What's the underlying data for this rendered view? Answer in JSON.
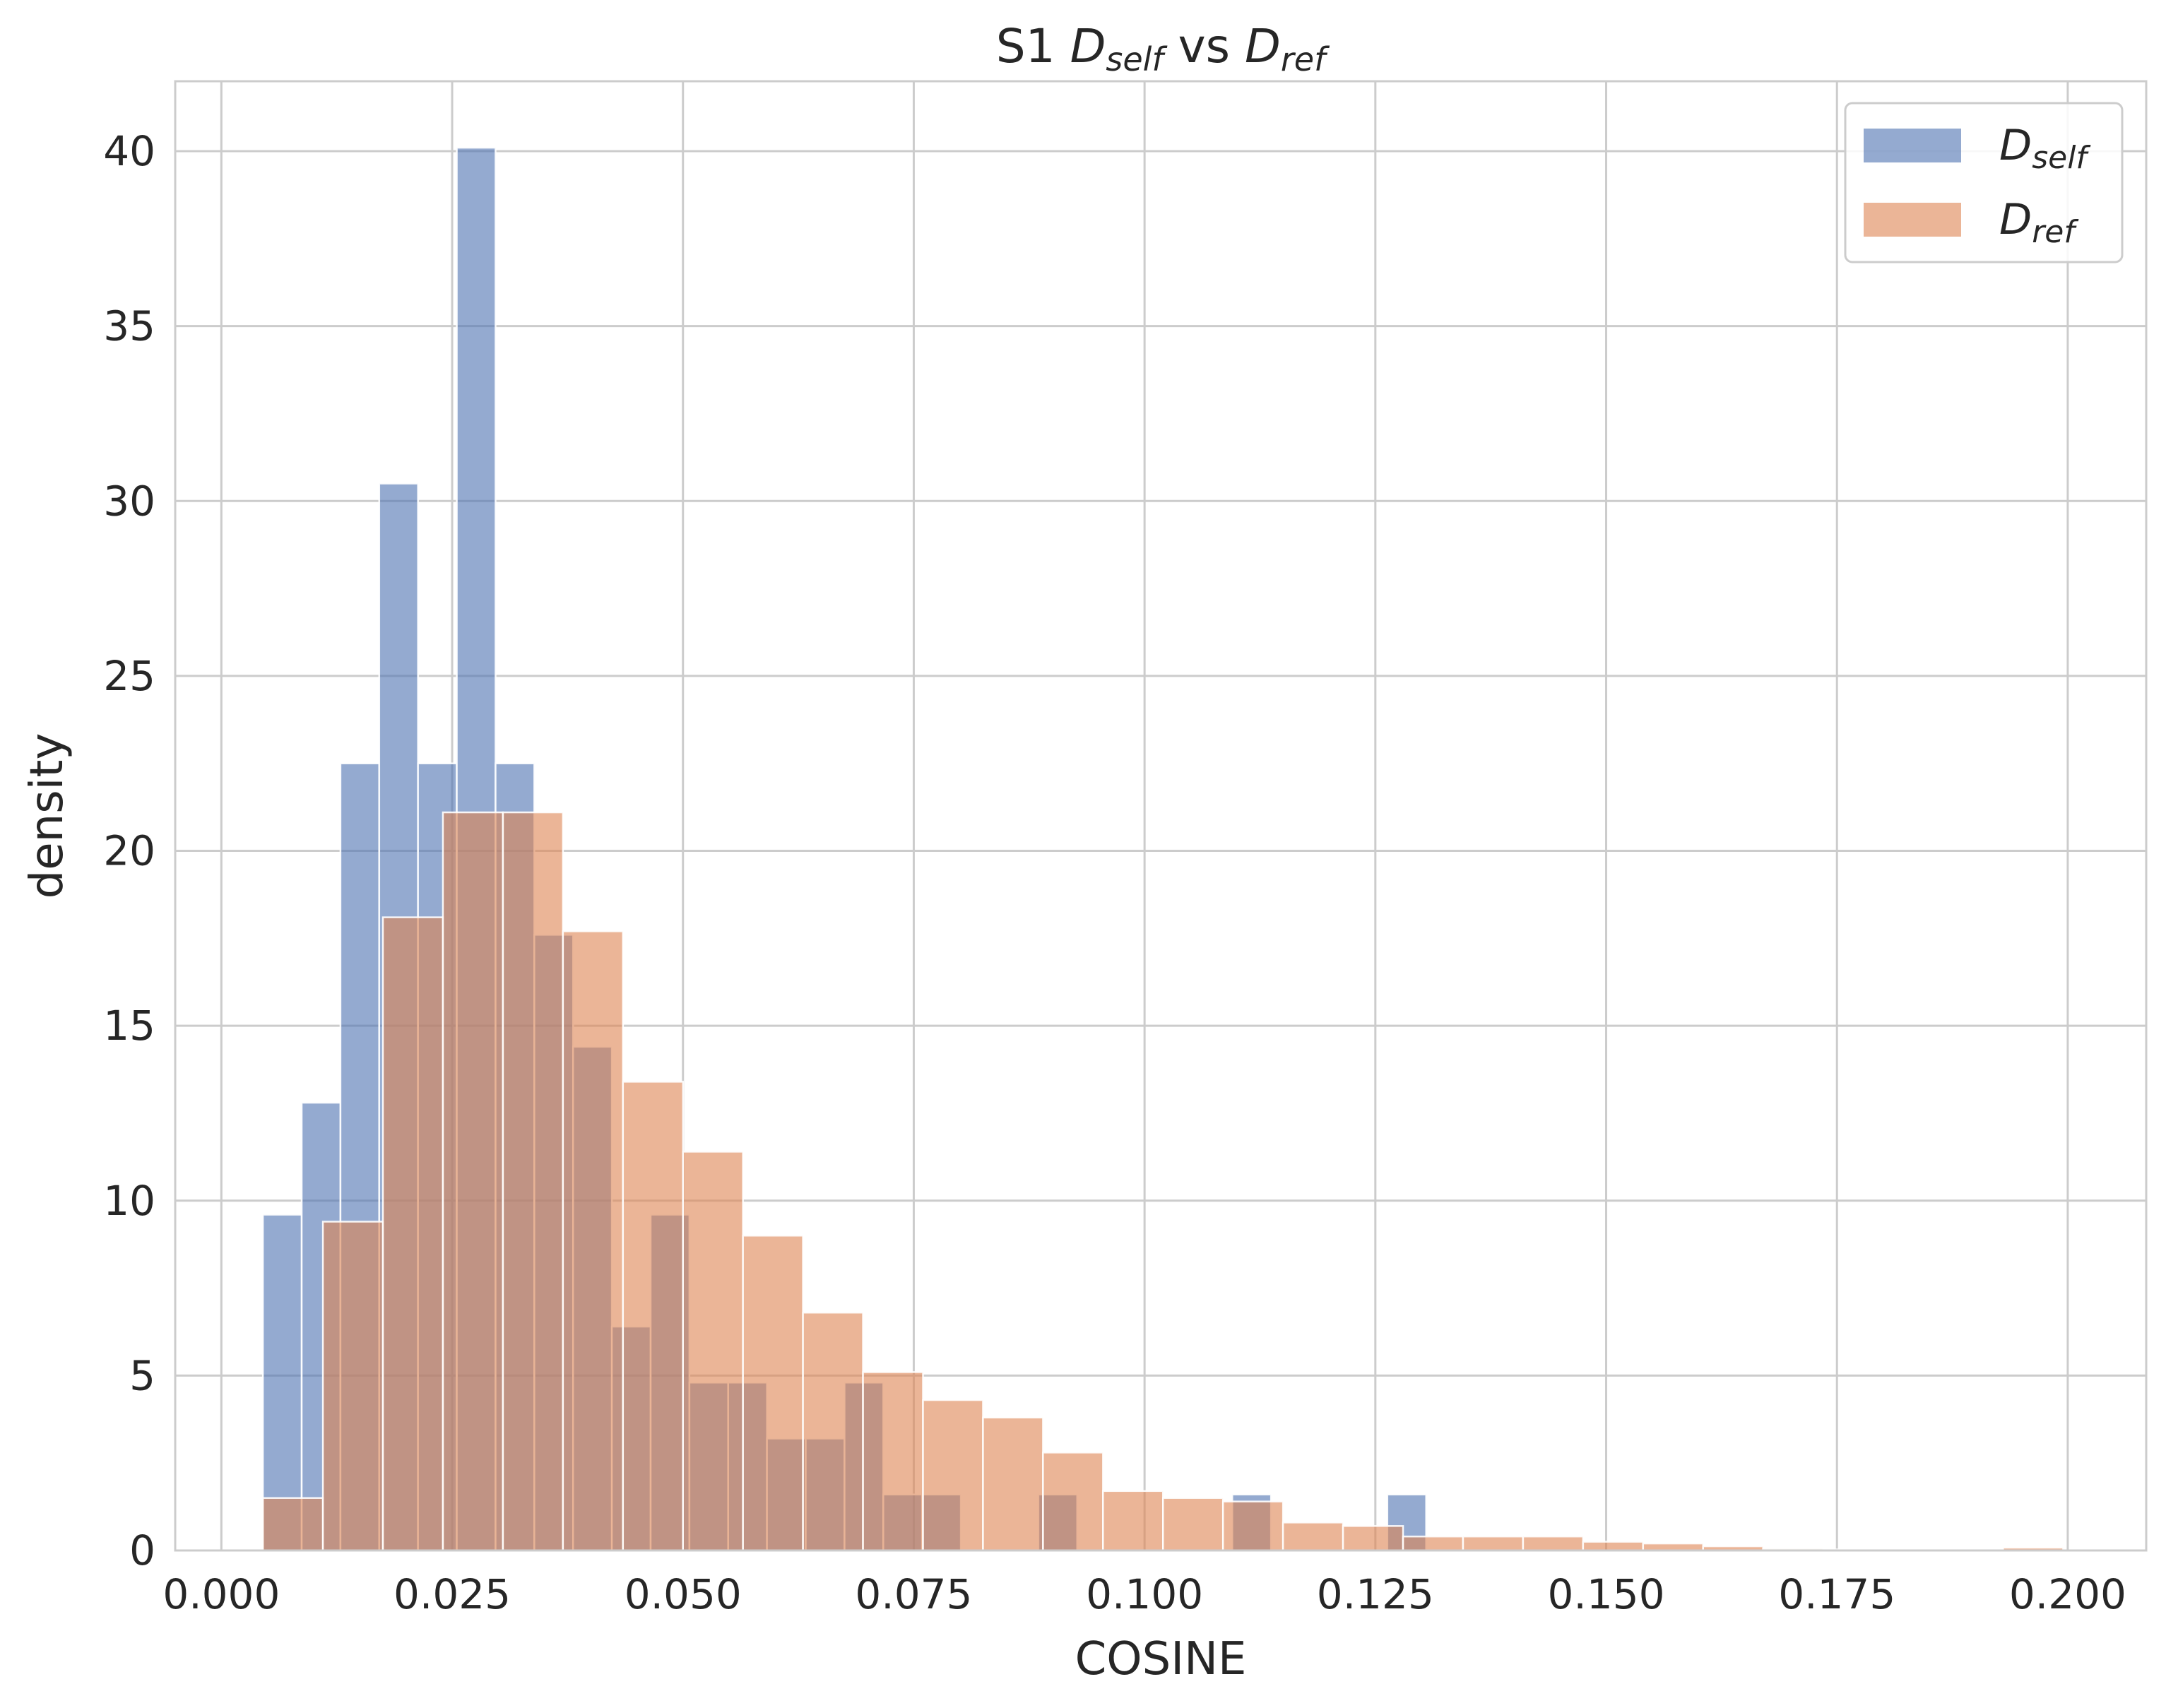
{
  "chart_data": {
    "type": "bar",
    "subtype": "histogram",
    "title": {
      "prefix": "S1 ",
      "series1": "D",
      "series1_sub": "self",
      "middle": " vs ",
      "series2": "D",
      "series2_sub": "ref"
    },
    "xlabel": "COSINE",
    "ylabel": "density",
    "xlim": [
      -0.005,
      0.2085
    ],
    "ylim": [
      0,
      42
    ],
    "xticks": [
      0.0,
      0.025,
      0.05,
      0.075,
      0.1,
      0.125,
      0.15,
      0.175,
      0.2
    ],
    "xtick_labels": [
      "0.000",
      "0.025",
      "0.050",
      "0.075",
      "0.100",
      "0.125",
      "0.150",
      "0.175",
      "0.200"
    ],
    "yticks": [
      0,
      5,
      10,
      15,
      20,
      25,
      30,
      35,
      40
    ],
    "ytick_labels": [
      "0",
      "5",
      "10",
      "15",
      "20",
      "25",
      "30",
      "35",
      "40"
    ],
    "grid": true,
    "legend_position": "top-right",
    "series": [
      {
        "name": "D",
        "name_sub": "self",
        "color": "#4c72b0",
        "opacity": 0.6,
        "bins": [
          [
            0.0045,
            0.0087,
            9.6
          ],
          [
            0.0087,
            0.0129,
            12.8
          ],
          [
            0.0129,
            0.0171,
            22.5
          ],
          [
            0.0171,
            0.0213,
            30.5
          ],
          [
            0.0213,
            0.0255,
            22.5
          ],
          [
            0.0255,
            0.0297,
            40.1
          ],
          [
            0.0297,
            0.0339,
            22.5
          ],
          [
            0.0339,
            0.0381,
            17.6
          ],
          [
            0.0381,
            0.0423,
            14.4
          ],
          [
            0.0423,
            0.0465,
            6.4
          ],
          [
            0.0465,
            0.0507,
            9.6
          ],
          [
            0.0507,
            0.0549,
            4.8
          ],
          [
            0.0549,
            0.0591,
            4.8
          ],
          [
            0.0591,
            0.0633,
            3.2
          ],
          [
            0.0633,
            0.0675,
            3.2
          ],
          [
            0.0675,
            0.0717,
            4.8
          ],
          [
            0.0717,
            0.0759,
            1.6
          ],
          [
            0.0759,
            0.0801,
            1.6
          ],
          [
            0.0801,
            0.0843,
            0
          ],
          [
            0.0843,
            0.0885,
            0
          ],
          [
            0.0885,
            0.0927,
            1.6
          ],
          [
            0.0927,
            0.0969,
            0
          ],
          [
            0.0969,
            0.1011,
            0
          ],
          [
            0.1011,
            0.1053,
            0
          ],
          [
            0.1053,
            0.1095,
            0
          ],
          [
            0.1095,
            0.1137,
            1.6
          ],
          [
            0.1137,
            0.1179,
            0
          ],
          [
            0.1179,
            0.1221,
            0
          ],
          [
            0.1221,
            0.1263,
            0
          ],
          [
            0.1263,
            0.1305,
            1.6
          ]
        ]
      },
      {
        "name": "D",
        "name_sub": "ref",
        "color": "#dd8452",
        "opacity": 0.6,
        "bins": [
          [
            0.0045,
            0.011,
            1.5
          ],
          [
            0.011,
            0.0175,
            9.4
          ],
          [
            0.0175,
            0.024,
            18.1
          ],
          [
            0.024,
            0.0305,
            21.1
          ],
          [
            0.0305,
            0.037,
            21.1
          ],
          [
            0.037,
            0.0435,
            17.7
          ],
          [
            0.0435,
            0.05,
            13.4
          ],
          [
            0.05,
            0.0565,
            11.4
          ],
          [
            0.0565,
            0.063,
            9.0
          ],
          [
            0.063,
            0.0695,
            6.8
          ],
          [
            0.0695,
            0.076,
            5.1
          ],
          [
            0.076,
            0.0825,
            4.3
          ],
          [
            0.0825,
            0.089,
            3.8
          ],
          [
            0.089,
            0.0955,
            2.8
          ],
          [
            0.0955,
            0.102,
            1.7
          ],
          [
            0.102,
            0.1085,
            1.5
          ],
          [
            0.1085,
            0.115,
            1.4
          ],
          [
            0.115,
            0.1215,
            0.8
          ],
          [
            0.1215,
            0.128,
            0.7
          ],
          [
            0.128,
            0.1345,
            0.4
          ],
          [
            0.1345,
            0.141,
            0.4
          ],
          [
            0.141,
            0.1475,
            0.4
          ],
          [
            0.1475,
            0.154,
            0.25
          ],
          [
            0.154,
            0.1605,
            0.2
          ],
          [
            0.1605,
            0.167,
            0.12
          ],
          [
            0.167,
            0.1735,
            0.05
          ],
          [
            0.1735,
            0.18,
            0.03
          ],
          [
            0.18,
            0.1865,
            0.02
          ],
          [
            0.1865,
            0.193,
            0.02
          ],
          [
            0.193,
            0.1995,
            0.08
          ]
        ]
      }
    ]
  }
}
